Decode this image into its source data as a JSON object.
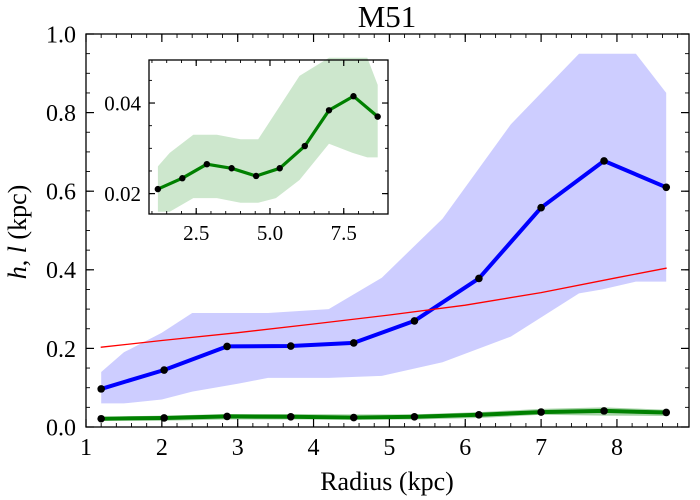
{
  "chart_data": [
    {
      "type": "line",
      "title": "M51",
      "xlabel": "Radius (kpc)",
      "ylabel_parts": [
        "h",
        ", ",
        "l",
        " (kpc)"
      ],
      "xlim": [
        1.0,
        8.95
      ],
      "ylim": [
        0.0,
        1.0
      ],
      "xticks": [
        1,
        2,
        3,
        4,
        5,
        6,
        7,
        8
      ],
      "xtick_labels": [
        "1",
        "2",
        "3",
        "4",
        "5",
        "6",
        "7",
        "8"
      ],
      "yticks": [
        0.0,
        0.2,
        0.4,
        0.6,
        0.8,
        1.0
      ],
      "ytick_labels": [
        "0.0",
        "0.2",
        "0.4",
        "0.6",
        "0.8",
        "1.0"
      ],
      "grid": false,
      "series": [
        {
          "color": "#0000ff",
          "marker_color": "#000000",
          "band_color": "#cdcdff",
          "x": [
            1.2,
            2.03,
            2.86,
            3.7,
            4.53,
            5.33,
            6.18,
            7.0,
            7.83,
            8.65
          ],
          "y": [
            0.097,
            0.145,
            0.205,
            0.206,
            0.214,
            0.27,
            0.378,
            0.558,
            0.677,
            0.61
          ],
          "band_x": [
            1.2,
            1.5,
            2.0,
            2.4,
            3.0,
            3.4,
            4.2,
            4.9,
            5.7,
            6.6,
            7.5,
            7.8,
            8.25,
            8.65
          ],
          "band_upper": [
            0.14,
            0.19,
            0.24,
            0.29,
            0.29,
            0.29,
            0.3,
            0.38,
            0.53,
            0.77,
            0.95,
            0.95,
            0.95,
            0.85
          ],
          "band_lower": [
            0.06,
            0.06,
            0.07,
            0.09,
            0.11,
            0.125,
            0.125,
            0.13,
            0.165,
            0.23,
            0.34,
            0.35,
            0.37,
            0.37
          ]
        },
        {
          "color": "#ff0000",
          "style": "smooth",
          "x": [
            1.2,
            2.0,
            3.0,
            4.0,
            5.0,
            6.0,
            7.0,
            8.0,
            8.65
          ],
          "y": [
            0.203,
            0.22,
            0.24,
            0.262,
            0.285,
            0.31,
            0.342,
            0.38,
            0.404
          ]
        },
        {
          "color": "#008000",
          "marker_color": "#000000",
          "band_color": "#a7d3a7",
          "x": [
            1.2,
            2.03,
            2.86,
            3.7,
            4.53,
            5.33,
            6.18,
            7.0,
            7.83,
            8.65
          ],
          "y": [
            0.021,
            0.023,
            0.027,
            0.026,
            0.024,
            0.026,
            0.031,
            0.038,
            0.041,
            0.037
          ],
          "band_upper": [
            0.026,
            0.029,
            0.033,
            0.033,
            0.032,
            0.032,
            0.038,
            0.046,
            0.05,
            0.044
          ],
          "band_lower": [
            0.016,
            0.016,
            0.019,
            0.019,
            0.019,
            0.019,
            0.023,
            0.031,
            0.029,
            0.028
          ]
        }
      ]
    },
    {
      "type": "line",
      "inset": true,
      "xlim": [
        0.9,
        9.0
      ],
      "ylim": [
        0.0155,
        0.0495
      ],
      "xticks": [
        2.5,
        5.0,
        7.5
      ],
      "xtick_labels": [
        "2.5",
        "5.0",
        "7.5"
      ],
      "yticks": [
        0.02,
        0.04
      ],
      "ytick_labels": [
        "0.02",
        "0.04"
      ],
      "grid": false,
      "series": [
        {
          "color": "#008000",
          "marker_color": "#000000",
          "band_color": "#cde7cd",
          "x": [
            1.2,
            2.03,
            2.86,
            3.7,
            4.53,
            5.33,
            6.18,
            7.0,
            7.83,
            8.65
          ],
          "y": [
            0.021,
            0.0234,
            0.0265,
            0.0256,
            0.0239,
            0.0256,
            0.0305,
            0.0384,
            0.0415,
            0.037
          ],
          "band_x": [
            1.2,
            1.6,
            2.4,
            3.2,
            4.0,
            4.6,
            5.2,
            6.0,
            7.0,
            7.8,
            8.3,
            8.65
          ],
          "band_upper": [
            0.026,
            0.029,
            0.033,
            0.033,
            0.032,
            0.032,
            0.038,
            0.046,
            0.05,
            0.05,
            0.05,
            0.044
          ],
          "band_lower": [
            0.016,
            0.016,
            0.019,
            0.019,
            0.018,
            0.018,
            0.019,
            0.023,
            0.031,
            0.029,
            0.028,
            0.028
          ]
        }
      ]
    }
  ]
}
